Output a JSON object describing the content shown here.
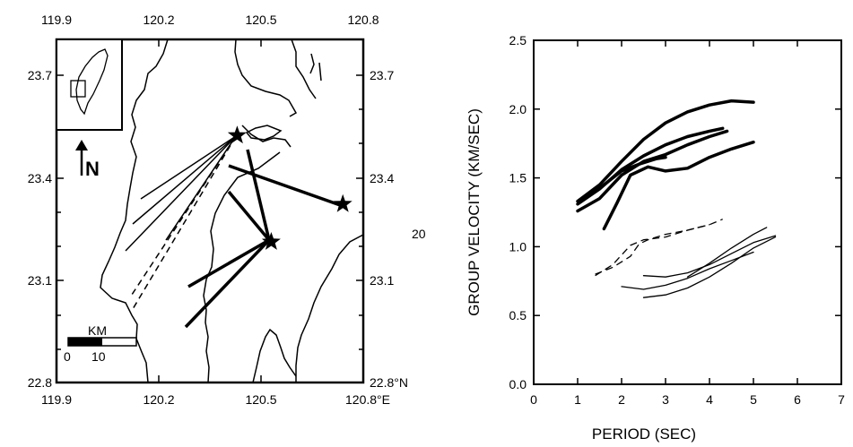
{
  "map": {
    "top_lon_labels": [
      "119.9",
      "120.2",
      "120.5",
      "120.8"
    ],
    "bottom_lon_labels": [
      "119.9",
      "120.2",
      "120.5",
      "120.8°E"
    ],
    "left_lat_labels": [
      "23.7",
      "23.4",
      "23.1",
      "22.8"
    ],
    "right_lat_labels": [
      "23.7",
      "23.4",
      "23.1",
      "22.8°N"
    ],
    "north_label": "N",
    "scale_label": "KM",
    "scale_ticks": [
      "0",
      "10"
    ],
    "stray_label": "20",
    "stations": [
      {
        "lon": 120.43,
        "lat": 23.52
      },
      {
        "lon": 120.53,
        "lat": 23.21
      },
      {
        "lon": 120.74,
        "lat": 23.32
      }
    ]
  },
  "chart_data": {
    "type": "line",
    "title": "",
    "xlabel": "PERIOD (SEC)",
    "ylabel": "GROUP VELOCITY (KM/SEC)",
    "xlim": [
      0,
      7
    ],
    "ylim": [
      0.0,
      2.5
    ],
    "xticks": [
      "0",
      "1",
      "2",
      "3",
      "4",
      "5",
      "6",
      "7"
    ],
    "yticks": [
      "0.0",
      "0.5",
      "1.0",
      "1.5",
      "2.0",
      "2.5"
    ],
    "grid": false,
    "series": [
      {
        "style": "thick",
        "points": [
          [
            1.0,
            1.33
          ],
          [
            1.5,
            1.45
          ],
          [
            2.0,
            1.62
          ],
          [
            2.5,
            1.78
          ],
          [
            3.0,
            1.9
          ],
          [
            3.5,
            1.98
          ],
          [
            4.0,
            2.03
          ],
          [
            4.5,
            2.06
          ],
          [
            5.0,
            2.05
          ]
        ]
      },
      {
        "style": "thick",
        "points": [
          [
            1.0,
            1.31
          ],
          [
            1.5,
            1.42
          ],
          [
            2.0,
            1.56
          ],
          [
            2.5,
            1.66
          ],
          [
            3.0,
            1.74
          ],
          [
            3.5,
            1.8
          ],
          [
            4.0,
            1.84
          ],
          [
            4.3,
            1.86
          ]
        ]
      },
      {
        "style": "thick",
        "points": [
          [
            1.0,
            1.26
          ],
          [
            1.5,
            1.35
          ],
          [
            2.0,
            1.52
          ],
          [
            2.5,
            1.62
          ],
          [
            3.0,
            1.67
          ],
          [
            3.5,
            1.74
          ],
          [
            4.0,
            1.8
          ],
          [
            4.4,
            1.84
          ]
        ]
      },
      {
        "style": "thick",
        "points": [
          [
            1.6,
            1.13
          ],
          [
            1.9,
            1.32
          ],
          [
            2.2,
            1.52
          ],
          [
            2.6,
            1.58
          ],
          [
            3.0,
            1.55
          ],
          [
            3.5,
            1.57
          ],
          [
            4.0,
            1.65
          ],
          [
            4.5,
            1.71
          ],
          [
            5.0,
            1.76
          ]
        ]
      },
      {
        "style": "thick",
        "points": [
          [
            1.2,
            1.36
          ],
          [
            1.6,
            1.45
          ],
          [
            2.0,
            1.55
          ],
          [
            2.4,
            1.6
          ],
          [
            2.8,
            1.64
          ],
          [
            3.0,
            1.65
          ]
        ]
      },
      {
        "style": "dashed",
        "points": [
          [
            1.4,
            0.8
          ],
          [
            1.8,
            0.85
          ],
          [
            2.2,
            0.93
          ],
          [
            2.4,
            1.02
          ],
          [
            2.6,
            1.05
          ],
          [
            3.0,
            1.09
          ],
          [
            3.5,
            1.12
          ],
          [
            4.0,
            1.16
          ],
          [
            4.3,
            1.2
          ]
        ]
      },
      {
        "style": "dashed",
        "points": [
          [
            1.4,
            0.79
          ],
          [
            1.8,
            0.87
          ],
          [
            2.2,
            1.01
          ],
          [
            2.5,
            1.05
          ],
          [
            3.0,
            1.07
          ],
          [
            3.5,
            1.12
          ],
          [
            4.0,
            1.16
          ]
        ]
      },
      {
        "style": "thin",
        "points": [
          [
            2.0,
            0.71
          ],
          [
            2.5,
            0.69
          ],
          [
            3.0,
            0.72
          ],
          [
            3.5,
            0.77
          ],
          [
            4.0,
            0.84
          ],
          [
            4.5,
            0.9
          ],
          [
            5.0,
            0.96
          ]
        ]
      },
      {
        "style": "thin",
        "points": [
          [
            2.5,
            0.63
          ],
          [
            3.0,
            0.65
          ],
          [
            3.5,
            0.7
          ],
          [
            4.0,
            0.78
          ],
          [
            4.5,
            0.88
          ],
          [
            5.0,
            0.99
          ],
          [
            5.5,
            1.07
          ]
        ]
      },
      {
        "style": "thin",
        "points": [
          [
            2.5,
            0.79
          ],
          [
            3.0,
            0.78
          ],
          [
            3.5,
            0.81
          ],
          [
            4.0,
            0.87
          ],
          [
            4.5,
            0.95
          ],
          [
            5.0,
            1.03
          ],
          [
            5.5,
            1.08
          ]
        ]
      },
      {
        "style": "thin",
        "points": [
          [
            3.5,
            0.78
          ],
          [
            4.0,
            0.88
          ],
          [
            4.5,
            0.99
          ],
          [
            5.0,
            1.09
          ],
          [
            5.3,
            1.14
          ]
        ]
      }
    ]
  }
}
